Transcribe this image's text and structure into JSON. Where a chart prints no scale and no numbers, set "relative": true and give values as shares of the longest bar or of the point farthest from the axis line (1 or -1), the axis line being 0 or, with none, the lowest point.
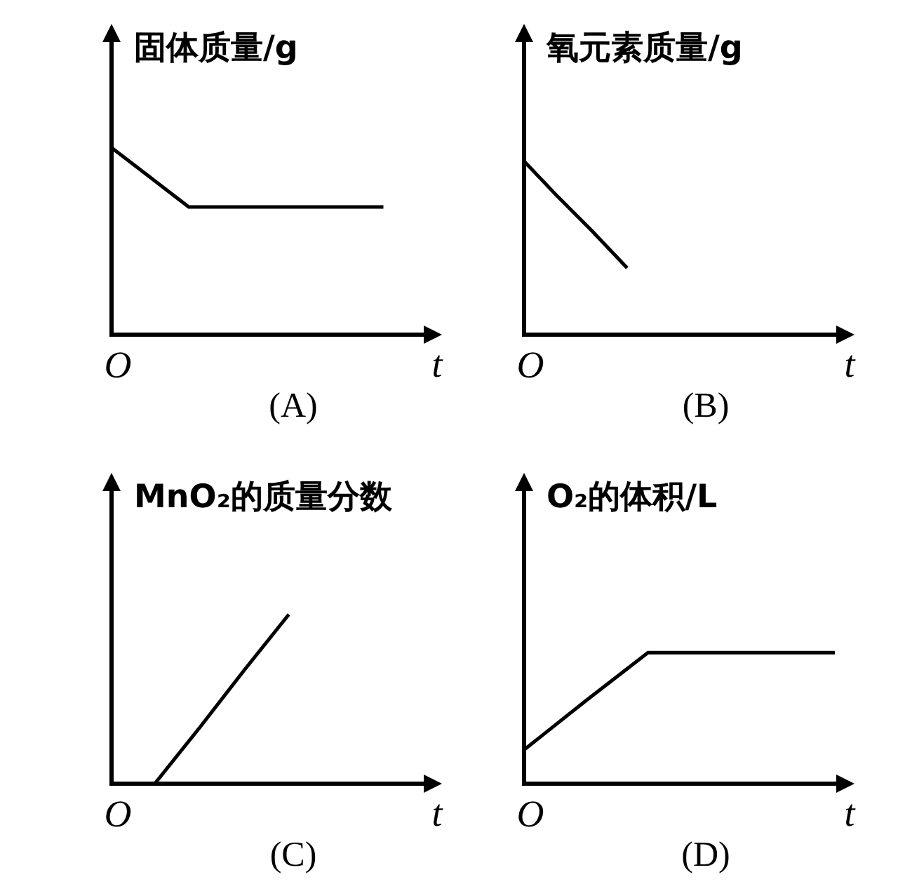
{
  "chart_data": [
    {
      "type": "line",
      "title": "(A)",
      "ylabel": "固体质量/g",
      "xlabel": "t",
      "annotations": [
        "O"
      ],
      "categories": [
        null,
        null,
        null,
        null,
        null,
        null,
        null,
        null,
        null
      ],
      "values": [
        1,
        0.84,
        0.68,
        0.68,
        0.68,
        0.68,
        0.68,
        0.68,
        null
      ],
      "color": "#000000",
      "relative": true
    },
    {
      "type": "line",
      "title": "(B)",
      "ylabel": "氧元素质量/g",
      "xlabel": "t",
      "annotations": [
        "O"
      ],
      "categories": [
        null,
        null,
        null,
        null,
        null,
        null,
        null,
        null,
        null,
        null
      ],
      "values": [
        1,
        0.79,
        0.59,
        0.38,
        null,
        null,
        null,
        null,
        null,
        null
      ],
      "color": "#000000",
      "relative": true
    },
    {
      "type": "line",
      "title": "(C)",
      "ylabel": "MnO₂的质量分数",
      "xlabel": "t",
      "annotations": [
        "O"
      ],
      "categories": [
        null,
        null,
        null,
        null,
        null,
        null,
        null,
        null
      ],
      "values": [
        null,
        0,
        0.33,
        0.67,
        1,
        null,
        null,
        null
      ],
      "color": "#000000",
      "relative": true
    },
    {
      "type": "line",
      "title": "(D)",
      "ylabel": "O₂的体积/L",
      "xlabel": "t",
      "annotations": [
        "O"
      ],
      "categories": [
        null,
        null,
        null,
        null,
        null,
        null
      ],
      "values": [
        0.25,
        0.63,
        1,
        1,
        1,
        1
      ],
      "color": "#000000",
      "relative": true
    }
  ]
}
